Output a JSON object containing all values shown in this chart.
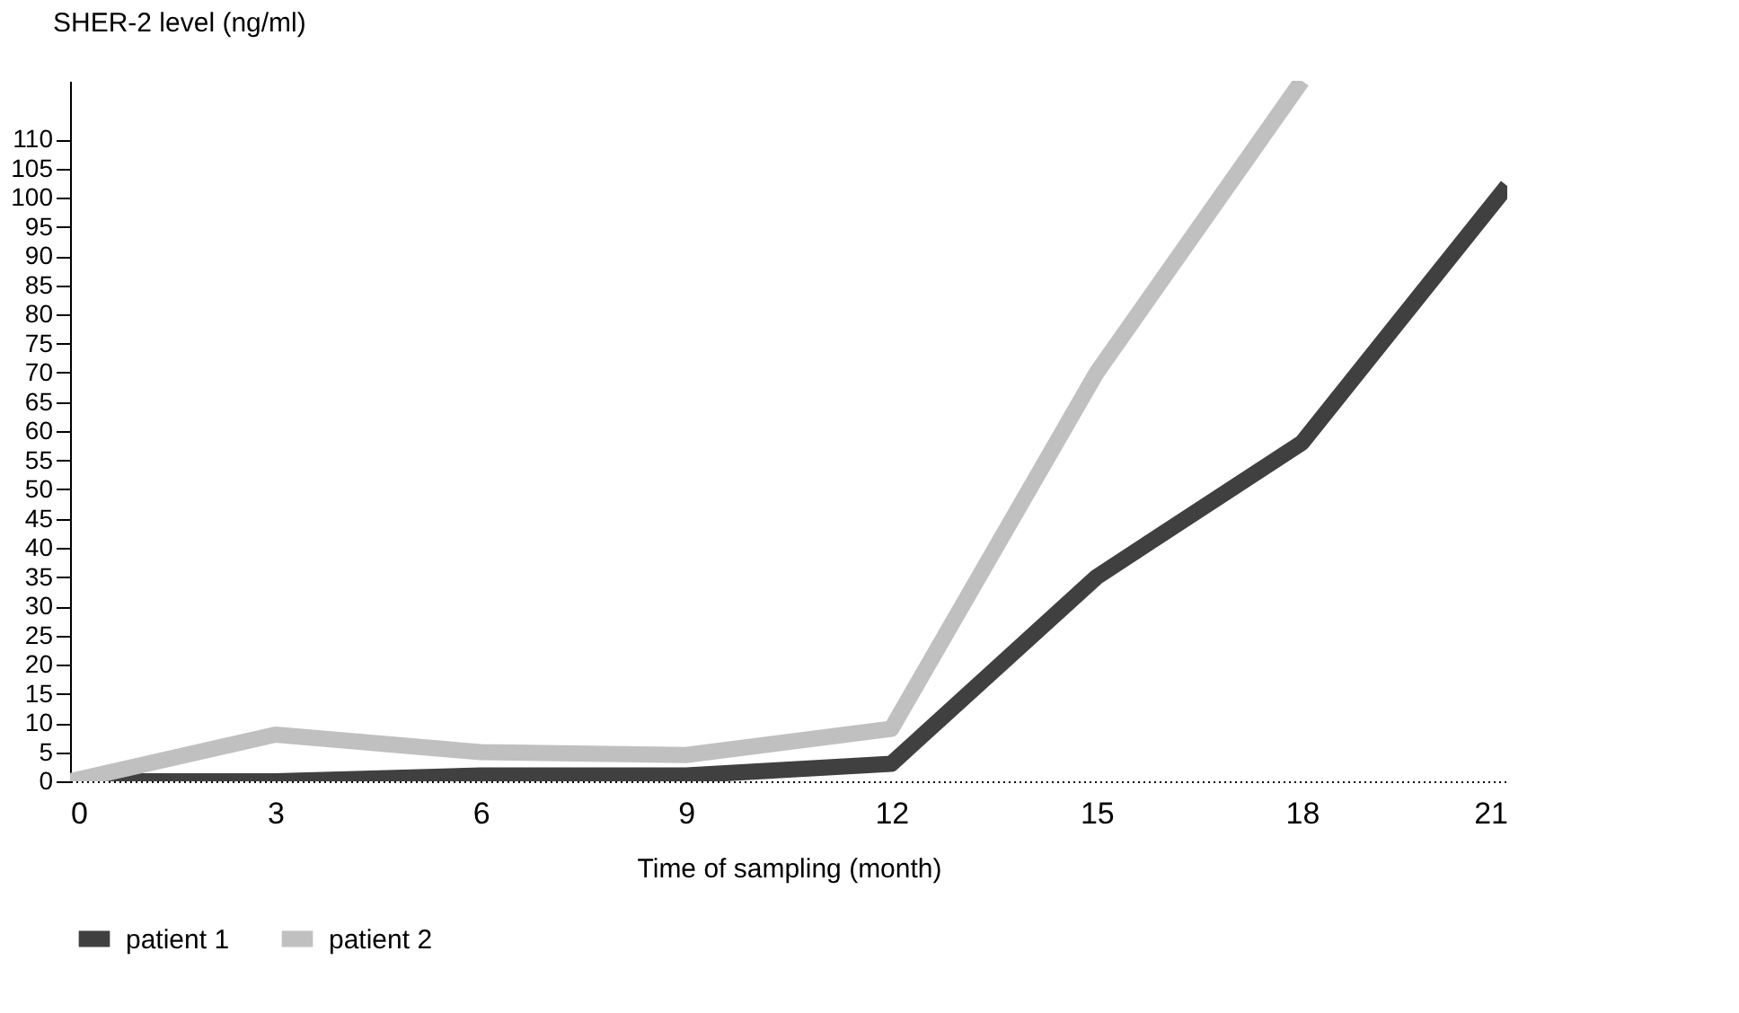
{
  "chart_data": {
    "type": "line",
    "xlabel": "Time of sampling (month)",
    "ylabel": "SHER-2 level (ng/ml)",
    "x": [
      0,
      3,
      6,
      9,
      12,
      15,
      18,
      21
    ],
    "series": [
      {
        "name": "patient 1",
        "color": "#404040",
        "values": [
          0,
          0,
          1,
          1,
          3,
          35,
          58,
          102
        ]
      },
      {
        "name": "patient 2",
        "color": "#c0c0c0",
        "values": [
          0,
          8,
          5,
          4.5,
          9,
          70,
          120,
          null
        ]
      }
    ],
    "xlim": [
      0,
      21
    ],
    "xticks": [
      0,
      3,
      6,
      9,
      12,
      15,
      18,
      21
    ],
    "ylim": [
      0,
      120
    ],
    "yticks": [
      0,
      5,
      10,
      15,
      20,
      25,
      30,
      35,
      40,
      45,
      50,
      55,
      60,
      65,
      70,
      75,
      80,
      85,
      90,
      95,
      100,
      105,
      110
    ],
    "grid": false,
    "legend": "bottom",
    "marker": "none",
    "line_style": "solid"
  }
}
